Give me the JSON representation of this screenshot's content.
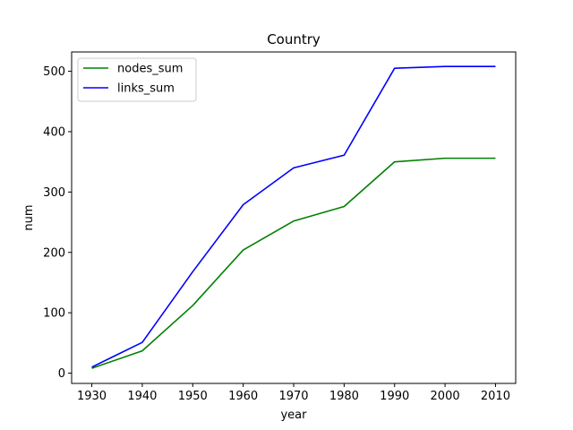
{
  "chart_data": {
    "type": "line",
    "title": "Country",
    "xlabel": "year",
    "ylabel": "num",
    "x": [
      1930,
      1940,
      1950,
      1960,
      1970,
      1980,
      1990,
      2000,
      2010
    ],
    "xticks": [
      "1930",
      "1940",
      "1950",
      "1960",
      "1970",
      "1980",
      "1990",
      "2000",
      "2010"
    ],
    "yticks": [
      0,
      100,
      200,
      300,
      400,
      500
    ],
    "xlim": [
      1926,
      2014
    ],
    "ylim": [
      -17,
      532
    ],
    "legend_position": "top-left",
    "series": [
      {
        "name": "nodes_sum",
        "color": "#008000",
        "values": [
          8,
          37,
          112,
          204,
          252,
          276,
          350,
          356,
          356
        ]
      },
      {
        "name": "links_sum",
        "color": "#0000ff",
        "values": [
          10,
          51,
          168,
          279,
          340,
          361,
          505,
          508,
          508
        ]
      }
    ]
  }
}
